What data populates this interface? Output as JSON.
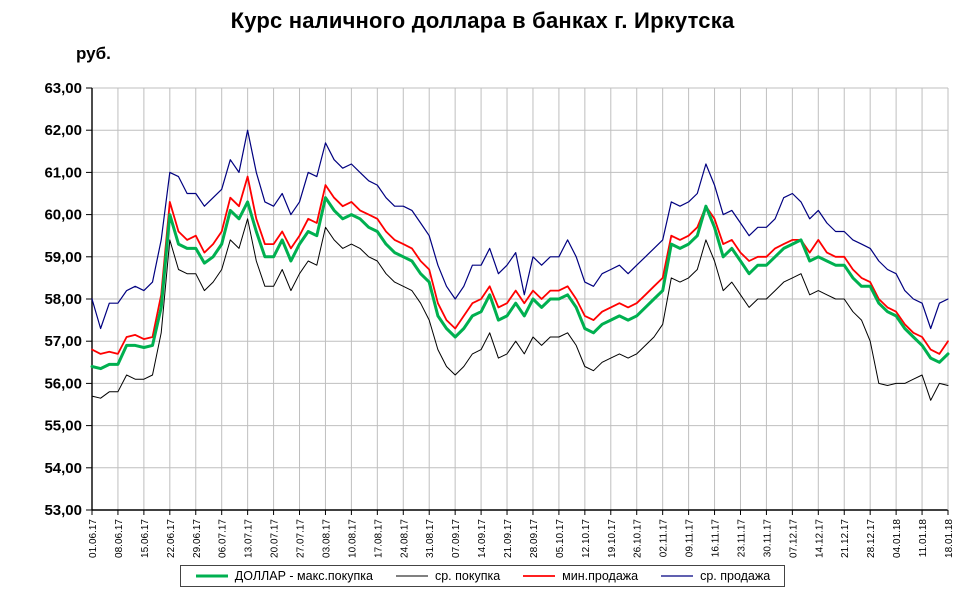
{
  "chart_data": {
    "type": "line",
    "title": "Курс наличного доллара в банках г. Иркутска",
    "y_axis_unit": "руб.",
    "ylim": [
      53,
      63
    ],
    "y_tick_step": 1,
    "grid": true,
    "legend_position": "bottom",
    "y_tick_labels": [
      "53,00",
      "54,00",
      "55,00",
      "56,00",
      "57,00",
      "58,00",
      "59,00",
      "60,00",
      "61,00",
      "62,00",
      "63,00"
    ],
    "x_tick_labels": [
      "01.06.17",
      "08.06.17",
      "15.06.17",
      "22.06.17",
      "29.06.17",
      "06.07.17",
      "13.07.17",
      "20.07.17",
      "27.07.17",
      "03.08.17",
      "10.08.17",
      "17.08.17",
      "24.08.17",
      "31.08.17",
      "07.09.17",
      "14.09.17",
      "21.09.17",
      "28.09.17",
      "05.10.17",
      "12.10.17",
      "19.10.17",
      "26.10.17",
      "02.11.17",
      "09.11.17",
      "16.11.17",
      "23.11.17",
      "30.11.17",
      "07.12.17",
      "14.12.17",
      "21.12.17",
      "28.12.17",
      "04.01.18",
      "11.01.18",
      "18.01.18"
    ],
    "series": [
      {
        "name": "ДОЛЛАР - макс.покупка",
        "color": "#00b050",
        "width": 3,
        "values": [
          56.4,
          56.35,
          56.45,
          56.45,
          56.9,
          56.9,
          56.85,
          56.9,
          57.8,
          60.0,
          59.3,
          59.2,
          59.2,
          58.85,
          59.0,
          59.3,
          60.1,
          59.9,
          60.3,
          59.6,
          59.0,
          59.0,
          59.4,
          58.9,
          59.3,
          59.6,
          59.5,
          60.4,
          60.1,
          59.9,
          60.0,
          59.9,
          59.7,
          59.6,
          59.3,
          59.1,
          59.0,
          58.9,
          58.6,
          58.4,
          57.6,
          57.3,
          57.1,
          57.3,
          57.6,
          57.7,
          58.1,
          57.5,
          57.6,
          57.9,
          57.6,
          58.0,
          57.8,
          58.0,
          58.0,
          58.1,
          57.8,
          57.3,
          57.2,
          57.4,
          57.5,
          57.6,
          57.5,
          57.6,
          57.8,
          58.0,
          58.2,
          59.3,
          59.2,
          59.3,
          59.5,
          60.2,
          59.7,
          59.0,
          59.2,
          58.9,
          58.6,
          58.8,
          58.8,
          59.0,
          59.2,
          59.3,
          59.4,
          58.9,
          59.0,
          58.9,
          58.8,
          58.8,
          58.5,
          58.3,
          58.3,
          57.9,
          57.7,
          57.6,
          57.3,
          57.1,
          56.9,
          56.6,
          56.5,
          56.7
        ]
      },
      {
        "name": "ср. покупка",
        "color": "#000000",
        "width": 1,
        "values": [
          55.7,
          55.65,
          55.8,
          55.8,
          56.2,
          56.1,
          56.1,
          56.2,
          57.2,
          59.4,
          58.7,
          58.6,
          58.6,
          58.2,
          58.4,
          58.7,
          59.4,
          59.2,
          59.9,
          58.9,
          58.3,
          58.3,
          58.7,
          58.2,
          58.6,
          58.9,
          58.8,
          59.7,
          59.4,
          59.2,
          59.3,
          59.2,
          59.0,
          58.9,
          58.6,
          58.4,
          58.3,
          58.2,
          57.9,
          57.5,
          56.8,
          56.4,
          56.2,
          56.4,
          56.7,
          56.8,
          57.2,
          56.6,
          56.7,
          57.0,
          56.7,
          57.1,
          56.9,
          57.1,
          57.1,
          57.2,
          56.9,
          56.4,
          56.3,
          56.5,
          56.6,
          56.7,
          56.6,
          56.7,
          56.9,
          57.1,
          57.4,
          58.5,
          58.4,
          58.5,
          58.7,
          59.4,
          58.9,
          58.2,
          58.4,
          58.1,
          57.8,
          58.0,
          58.0,
          58.2,
          58.4,
          58.5,
          58.6,
          58.1,
          58.2,
          58.1,
          58.0,
          58.0,
          57.7,
          57.5,
          57.0,
          56.0,
          55.95,
          56.0,
          56.0,
          56.1,
          56.2,
          55.6,
          56.0,
          55.95
        ]
      },
      {
        "name": "мин.продажа",
        "color": "#ff0000",
        "width": 1.8,
        "values": [
          56.8,
          56.7,
          56.75,
          56.7,
          57.1,
          57.15,
          57.05,
          57.1,
          58.1,
          60.3,
          59.6,
          59.4,
          59.5,
          59.1,
          59.3,
          59.6,
          60.4,
          60.2,
          60.9,
          59.9,
          59.3,
          59.3,
          59.6,
          59.2,
          59.5,
          59.9,
          59.8,
          60.7,
          60.4,
          60.2,
          60.3,
          60.1,
          60.0,
          59.9,
          59.6,
          59.4,
          59.3,
          59.2,
          58.9,
          58.7,
          57.9,
          57.5,
          57.3,
          57.6,
          57.9,
          58.0,
          58.3,
          57.8,
          57.9,
          58.2,
          57.9,
          58.2,
          58.0,
          58.2,
          58.2,
          58.3,
          58.0,
          57.6,
          57.5,
          57.7,
          57.8,
          57.9,
          57.8,
          57.9,
          58.1,
          58.3,
          58.5,
          59.5,
          59.4,
          59.5,
          59.7,
          60.2,
          59.9,
          59.3,
          59.4,
          59.1,
          58.9,
          59.0,
          59.0,
          59.2,
          59.3,
          59.4,
          59.4,
          59.1,
          59.4,
          59.1,
          59.0,
          59.0,
          58.7,
          58.5,
          58.4,
          58.0,
          57.8,
          57.7,
          57.4,
          57.2,
          57.1,
          56.8,
          56.7,
          57.0
        ]
      },
      {
        "name": "ср. продажа",
        "color": "#000080",
        "width": 1.2,
        "values": [
          58.0,
          57.3,
          57.9,
          57.9,
          58.2,
          58.3,
          58.2,
          58.4,
          59.4,
          61.0,
          60.9,
          60.5,
          60.5,
          60.2,
          60.4,
          60.6,
          61.3,
          61.0,
          62.0,
          61.0,
          60.3,
          60.2,
          60.5,
          60.0,
          60.3,
          61.0,
          60.9,
          61.7,
          61.3,
          61.1,
          61.2,
          61.0,
          60.8,
          60.7,
          60.4,
          60.2,
          60.2,
          60.1,
          59.8,
          59.5,
          58.8,
          58.3,
          58.0,
          58.3,
          58.8,
          58.8,
          59.2,
          58.6,
          58.8,
          59.1,
          58.1,
          59.0,
          58.8,
          59.0,
          59.0,
          59.4,
          59.0,
          58.4,
          58.3,
          58.6,
          58.7,
          58.8,
          58.6,
          58.8,
          59.0,
          59.2,
          59.4,
          60.3,
          60.2,
          60.3,
          60.5,
          61.2,
          60.7,
          60.0,
          60.1,
          59.8,
          59.5,
          59.7,
          59.7,
          59.9,
          60.4,
          60.5,
          60.3,
          59.9,
          60.1,
          59.8,
          59.6,
          59.6,
          59.4,
          59.3,
          59.2,
          58.9,
          58.7,
          58.6,
          58.2,
          58.0,
          57.9,
          57.3,
          57.9,
          58.0
        ]
      }
    ]
  }
}
